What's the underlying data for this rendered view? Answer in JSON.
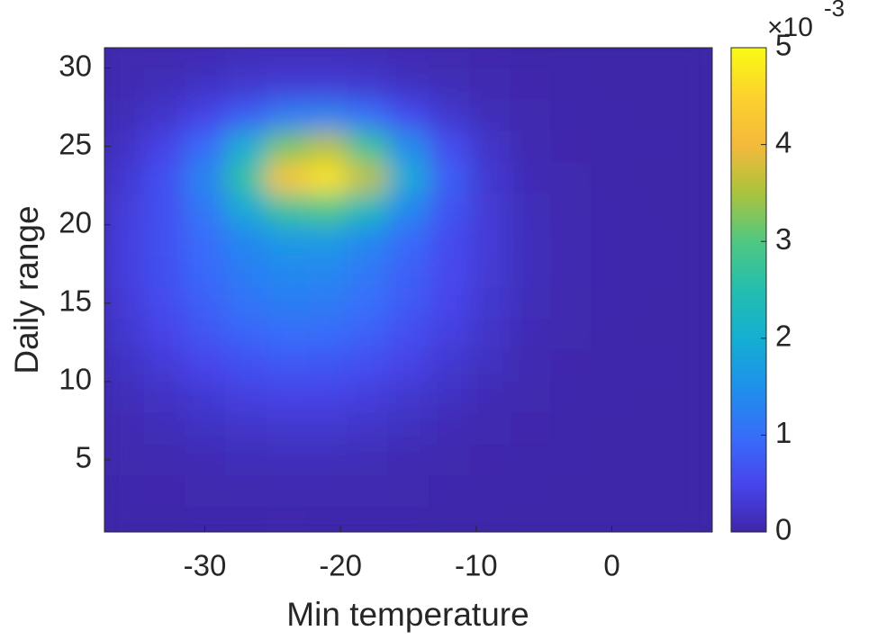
{
  "chart_data": {
    "type": "heatmap",
    "x_label": "Min temperature",
    "y_label": "Daily range",
    "x": [
      -36,
      -33,
      -30,
      -27,
      -24,
      -21,
      -18,
      -15,
      -12,
      -9,
      -6,
      -3,
      0,
      3,
      6
    ],
    "y": [
      31,
      29,
      27,
      25,
      23,
      21,
      19,
      17,
      15,
      13,
      11,
      9,
      7,
      5,
      3,
      1
    ],
    "values": [
      [
        0.04,
        0.06,
        0.09,
        0.12,
        0.13,
        0.13,
        0.11,
        0.08,
        0.05,
        0.03,
        0.01,
        0.01,
        0,
        0,
        0
      ],
      [
        0.07,
        0.12,
        0.19,
        0.26,
        0.32,
        0.33,
        0.27,
        0.18,
        0.11,
        0.06,
        0.03,
        0.01,
        0,
        0,
        0
      ],
      [
        0.12,
        0.24,
        0.45,
        0.79,
        1.18,
        1.29,
        1.01,
        0.57,
        0.27,
        0.12,
        0.04,
        0.02,
        0.01,
        0,
        0
      ],
      [
        0.21,
        0.45,
        0.98,
        2.0,
        3.22,
        3.59,
        2.76,
        1.46,
        0.6,
        0.22,
        0.07,
        0.03,
        0.01,
        0.01,
        0
      ],
      [
        0.29,
        0.61,
        1.31,
        2.65,
        4.24,
        4.71,
        3.62,
        1.93,
        0.81,
        0.3,
        0.1,
        0.04,
        0.01,
        0,
        0
      ],
      [
        0.34,
        0.63,
        1.14,
        1.92,
        2.76,
        2.98,
        2.34,
        1.38,
        0.68,
        0.31,
        0.12,
        0.05,
        0.02,
        0,
        0
      ],
      [
        0.38,
        0.64,
        0.99,
        1.37,
        1.65,
        1.66,
        1.37,
        0.95,
        0.57,
        0.32,
        0.14,
        0.06,
        0.02,
        0.01,
        0
      ],
      [
        0.38,
        0.63,
        0.94,
        1.22,
        1.38,
        1.35,
        1.14,
        0.84,
        0.54,
        0.31,
        0.14,
        0.06,
        0.02,
        0.01,
        0
      ],
      [
        0.33,
        0.56,
        0.84,
        1.08,
        1.22,
        1.2,
        1.01,
        0.75,
        0.48,
        0.27,
        0.12,
        0.05,
        0.02,
        0,
        0
      ],
      [
        0.27,
        0.45,
        0.67,
        0.87,
        0.99,
        0.97,
        0.82,
        0.6,
        0.39,
        0.22,
        0.1,
        0.04,
        0.01,
        0,
        0
      ],
      [
        0.19,
        0.33,
        0.48,
        0.63,
        0.71,
        0.69,
        0.59,
        0.43,
        0.28,
        0.16,
        0.07,
        0.03,
        0.01,
        0.01,
        0
      ],
      [
        0.12,
        0.2,
        0.3,
        0.39,
        0.44,
        0.44,
        0.37,
        0.27,
        0.18,
        0.1,
        0.04,
        0.02,
        0.01,
        0,
        0
      ],
      [
        0.07,
        0.12,
        0.18,
        0.23,
        0.26,
        0.26,
        0.22,
        0.16,
        0.1,
        0.06,
        0.03,
        0.01,
        0,
        0,
        0
      ],
      [
        0.04,
        0.06,
        0.09,
        0.12,
        0.13,
        0.13,
        0.11,
        0.08,
        0.05,
        0.03,
        0.01,
        0.01,
        0,
        0,
        0
      ],
      [
        0.02,
        0.03,
        0.04,
        0.05,
        0.06,
        0.06,
        0.05,
        0.04,
        0.02,
        0.01,
        0.01,
        0,
        0,
        0,
        0
      ],
      [
        0.01,
        0.01,
        0.02,
        0.02,
        0.03,
        0.02,
        0.02,
        0.02,
        0.01,
        0.01,
        0,
        0,
        0,
        0,
        0
      ]
    ],
    "xlim": [
      -37.4,
      7.4
    ],
    "ylim": [
      0.4,
      31.3
    ],
    "xticks": [
      -30,
      -20,
      -10,
      0
    ],
    "yticks": [
      5,
      10,
      15,
      20,
      25,
      30
    ],
    "colormap": "parula",
    "clim": [
      0,
      5
    ],
    "cticks": [
      0,
      1,
      2,
      3,
      4,
      5
    ],
    "colorbar_multiplier": {
      "base": "×10",
      "exponent": "-3"
    }
  }
}
